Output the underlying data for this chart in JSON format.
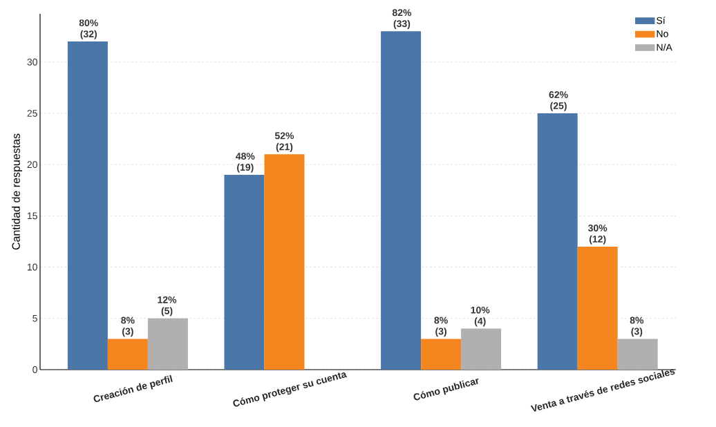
{
  "chart_data": {
    "type": "bar",
    "ylabel": "Cantidad de respuestas",
    "categories": [
      "Creación de perfil",
      "Cómo proteger su cuenta",
      "Cómo publicar",
      "Venta a través de redes sociales"
    ],
    "series": [
      {
        "name": "Sí",
        "color": "#4a76a8",
        "values": [
          32,
          19,
          33,
          25
        ],
        "value_labels": [
          "80% (32)",
          "48% (19)",
          "82% (33)",
          "62% (25)"
        ]
      },
      {
        "name": "No",
        "color": "#f5861f",
        "values": [
          3,
          21,
          3,
          12
        ],
        "value_labels": [
          "8% (3)",
          "52% (21)",
          "8% (3)",
          "30% (12)"
        ]
      },
      {
        "name": "N/A",
        "color": "#b0b0b0",
        "values": [
          5,
          null,
          4,
          3
        ],
        "value_labels": [
          "12% (5)",
          null,
          "10% (4)",
          "8% (3)"
        ]
      }
    ],
    "ylim": [
      0,
      34.7
    ],
    "yticks": [
      0,
      5,
      10,
      15,
      20,
      25,
      30
    ],
    "grid": "y",
    "legend": "top right"
  }
}
